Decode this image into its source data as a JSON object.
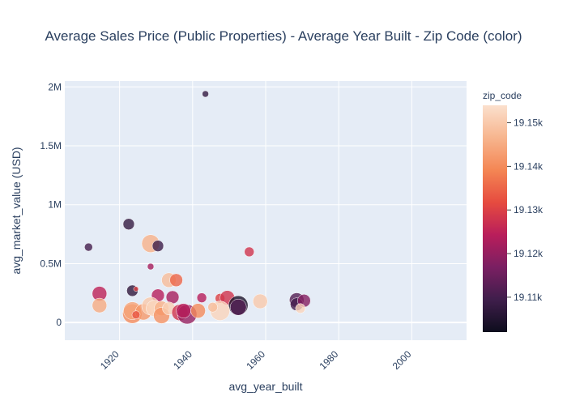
{
  "chart_data": {
    "type": "scatter",
    "title": "Average Sales Price (Public Properties) - Average Year Built - Zip Code (color)",
    "xlabel": "avg_year_built",
    "ylabel": "avg_market_value (USD)",
    "xlim": [
      1905,
      2015
    ],
    "ylim": [
      -150000,
      2050000
    ],
    "x_ticks": [
      1920,
      1940,
      1960,
      1980,
      2000
    ],
    "x_tick_labels": [
      "1920",
      "1940",
      "1960",
      "1980",
      "2000"
    ],
    "y_ticks": [
      0,
      500000,
      1000000,
      1500000,
      2000000
    ],
    "y_tick_labels": [
      "0",
      "0.5M",
      "1M",
      "1.5M",
      "2M"
    ],
    "grid": true,
    "colorbar": {
      "title": "zip_code",
      "range": [
        19102,
        19154
      ],
      "ticks": [
        19110,
        19120,
        19130,
        19140,
        19150
      ],
      "tick_labels": [
        "19.11k",
        "19.12k",
        "19.13k",
        "19.14k",
        "19.15k"
      ],
      "colorscale": [
        "#0d0d1d",
        "#3f1e4b",
        "#7a1f62",
        "#b91e5b",
        "#e64b3f",
        "#f48654",
        "#f7b58e",
        "#fbe0cd"
      ]
    },
    "points": [
      {
        "x": 1943.5,
        "y": 1940000,
        "z": 19108,
        "s": 4
      },
      {
        "x": 1911.5,
        "y": 640000,
        "z": 19110,
        "s": 5
      },
      {
        "x": 1922.5,
        "y": 835000,
        "z": 19108,
        "s": 7
      },
      {
        "x": 1928.5,
        "y": 670000,
        "z": 19146,
        "s": 11
      },
      {
        "x": 1930.5,
        "y": 650000,
        "z": 19109,
        "s": 7
      },
      {
        "x": 1928.5,
        "y": 475000,
        "z": 19122,
        "s": 4
      },
      {
        "x": 1955.5,
        "y": 600000,
        "z": 19128,
        "s": 6
      },
      {
        "x": 1923.5,
        "y": 270000,
        "z": 19107,
        "s": 7
      },
      {
        "x": 1924.5,
        "y": 285000,
        "z": 19130,
        "s": 3
      },
      {
        "x": 1914.5,
        "y": 245000,
        "z": 19125,
        "s": 9
      },
      {
        "x": 1914.5,
        "y": 145000,
        "z": 19145,
        "s": 9
      },
      {
        "x": 1933.5,
        "y": 360000,
        "z": 19148,
        "s": 9
      },
      {
        "x": 1935.5,
        "y": 360000,
        "z": 19135,
        "s": 8
      },
      {
        "x": 1930.5,
        "y": 230000,
        "z": 19124,
        "s": 8
      },
      {
        "x": 1934.5,
        "y": 215000,
        "z": 19122,
        "s": 8
      },
      {
        "x": 1942.5,
        "y": 210000,
        "z": 19124,
        "s": 6
      },
      {
        "x": 1947.5,
        "y": 205000,
        "z": 19130,
        "s": 6
      },
      {
        "x": 1949.5,
        "y": 210000,
        "z": 19128,
        "s": 9
      },
      {
        "x": 1952.5,
        "y": 145000,
        "z": 19104,
        "s": 12
      },
      {
        "x": 1952.5,
        "y": 130000,
        "z": 19112,
        "s": 10
      },
      {
        "x": 1947.5,
        "y": 100000,
        "z": 19152,
        "s": 12
      },
      {
        "x": 1945.5,
        "y": 130000,
        "z": 19148,
        "s": 6
      },
      {
        "x": 1958.5,
        "y": 180000,
        "z": 19150,
        "s": 9
      },
      {
        "x": 1968.5,
        "y": 190000,
        "z": 19112,
        "s": 9
      },
      {
        "x": 1968.5,
        "y": 155000,
        "z": 19110,
        "s": 8
      },
      {
        "x": 1970.5,
        "y": 185000,
        "z": 19118,
        "s": 8
      },
      {
        "x": 1969.5,
        "y": 120000,
        "z": 19152,
        "s": 6
      },
      {
        "x": 1923.5,
        "y": 75000,
        "z": 19140,
        "s": 12
      },
      {
        "x": 1923.5,
        "y": 100000,
        "z": 19144,
        "s": 11
      },
      {
        "x": 1926.5,
        "y": 90000,
        "z": 19142,
        "s": 10
      },
      {
        "x": 1924.5,
        "y": 65000,
        "z": 19133,
        "s": 5
      },
      {
        "x": 1928.5,
        "y": 140000,
        "z": 19150,
        "s": 11
      },
      {
        "x": 1929.5,
        "y": 120000,
        "z": 19152,
        "s": 10
      },
      {
        "x": 1931.5,
        "y": 120000,
        "z": 19146,
        "s": 9
      },
      {
        "x": 1931.5,
        "y": 60000,
        "z": 19141,
        "s": 10
      },
      {
        "x": 1933.5,
        "y": 120000,
        "z": 19151,
        "s": 8
      },
      {
        "x": 1936.5,
        "y": 85000,
        "z": 19128,
        "s": 10
      },
      {
        "x": 1938.5,
        "y": 70000,
        "z": 19120,
        "s": 12
      },
      {
        "x": 1937.5,
        "y": 100000,
        "z": 19124,
        "s": 9
      },
      {
        "x": 1941.5,
        "y": 100000,
        "z": 19140,
        "s": 9
      }
    ]
  }
}
